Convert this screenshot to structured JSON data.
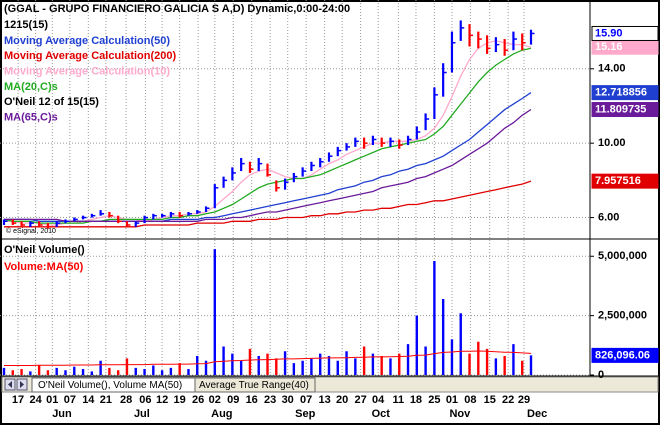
{
  "chart_data": [
    {
      "type": "ohlc",
      "title": "(GGAL - GRUPO FINANCIERO GALICIA S A,D) Dynamic,0:00-24:00",
      "subtitle": "1215(15)",
      "copyright": "© eSignal, 2010",
      "xlim": [
        0,
        60
      ],
      "xticks": [
        {
          "value": 1.6,
          "label": "17"
        },
        {
          "value": 3.6,
          "label": "24"
        },
        {
          "value": 5.5,
          "label": "01"
        },
        {
          "value": 7.5,
          "label": "07"
        },
        {
          "value": 9.6,
          "label": "14"
        },
        {
          "value": 11.6,
          "label": "21"
        },
        {
          "value": 13.9,
          "label": "28"
        },
        {
          "value": 16.1,
          "label": "06"
        },
        {
          "value": 18.0,
          "label": "12"
        },
        {
          "value": 20.0,
          "label": "19"
        },
        {
          "value": 22.1,
          "label": "26"
        },
        {
          "value": 24.0,
          "label": "02"
        },
        {
          "value": 26.1,
          "label": "09"
        },
        {
          "value": 28.2,
          "label": "16"
        },
        {
          "value": 30.3,
          "label": "23"
        },
        {
          "value": 32.3,
          "label": "30"
        },
        {
          "value": 34.4,
          "label": "07"
        },
        {
          "value": 36.5,
          "label": "13"
        },
        {
          "value": 38.5,
          "label": "20"
        },
        {
          "value": 40.6,
          "label": "27"
        },
        {
          "value": 42.6,
          "label": "04"
        },
        {
          "value": 44.9,
          "label": "11"
        },
        {
          "value": 46.9,
          "label": "18"
        },
        {
          "value": 49.0,
          "label": "25"
        },
        {
          "value": 51.0,
          "label": "01"
        },
        {
          "value": 53.1,
          "label": "08"
        },
        {
          "value": 55.3,
          "label": "15"
        },
        {
          "value": 57.4,
          "label": "22"
        },
        {
          "value": 59.2,
          "label": "29"
        }
      ],
      "month_ticks": [
        {
          "value": 6.6,
          "label": "Jun"
        },
        {
          "value": 15.7,
          "label": "Jul"
        },
        {
          "value": 24.8,
          "label": "Aug"
        },
        {
          "value": 34.3,
          "label": "Sep"
        },
        {
          "value": 42.9,
          "label": "Oct"
        },
        {
          "value": 51.9,
          "label": "Nov"
        },
        {
          "value": 60.7,
          "label": "Dec"
        }
      ],
      "ylim": [
        4.9,
        17.7
      ],
      "yticks": [
        {
          "value": 6,
          "label": "6.00"
        },
        {
          "value": 10,
          "label": "10.00"
        },
        {
          "value": 14,
          "label": "14.00"
        }
      ],
      "grid": true,
      "up_color": "#0000ff",
      "down_color": "#ff0000",
      "high": [
        5.9,
        5.9,
        5.8,
        5.8,
        5.8,
        5.7,
        5.8,
        5.9,
        6.0,
        6.1,
        6.2,
        6.4,
        6.3,
        6.1,
        5.8,
        5.8,
        6.1,
        6.2,
        6.2,
        6.3,
        6.3,
        6.3,
        6.4,
        6.6,
        7.8,
        8.2,
        8.7,
        9.2,
        9.0,
        9.2,
        8.9,
        8.0,
        8.1,
        8.4,
        8.7,
        9.0,
        9.2,
        9.5,
        9.8,
        10.0,
        10.3,
        10.3,
        10.4,
        10.3,
        10.3,
        10.2,
        10.4,
        10.9,
        11.6,
        13.0,
        14.3,
        16.0,
        16.6,
        16.4,
        16.0,
        15.8,
        15.7,
        15.6,
        16.0,
        15.9,
        16.1
      ],
      "low": [
        5.6,
        5.6,
        5.5,
        5.5,
        5.5,
        5.4,
        5.5,
        5.7,
        5.8,
        5.9,
        6.0,
        6.1,
        6.0,
        5.7,
        5.5,
        5.5,
        5.7,
        5.9,
        6.0,
        6.0,
        6.0,
        6.1,
        6.2,
        6.3,
        6.5,
        7.6,
        8.0,
        8.5,
        8.4,
        8.5,
        8.2,
        7.4,
        7.5,
        7.9,
        8.2,
        8.5,
        8.7,
        9.0,
        9.3,
        9.6,
        9.8,
        9.7,
        9.9,
        9.8,
        9.8,
        9.7,
        9.9,
        10.2,
        10.7,
        11.3,
        12.5,
        13.8,
        15.5,
        15.2,
        15.1,
        14.8,
        14.9,
        14.7,
        15.0,
        15.0,
        15.3
      ],
      "close": [
        5.8,
        5.7,
        5.6,
        5.7,
        5.6,
        5.5,
        5.7,
        5.8,
        5.9,
        6.0,
        6.1,
        6.2,
        6.1,
        5.8,
        5.6,
        5.7,
        6.0,
        6.1,
        6.1,
        6.2,
        6.1,
        6.2,
        6.3,
        6.5,
        7.6,
        8.0,
        8.4,
        8.9,
        8.6,
        8.9,
        8.3,
        7.6,
        7.9,
        8.2,
        8.5,
        8.8,
        9.0,
        9.3,
        9.6,
        9.8,
        10.1,
        10.0,
        10.2,
        10.0,
        10.1,
        9.9,
        10.2,
        10.6,
        11.3,
        12.6,
        13.8,
        15.4,
        16.2,
        15.8,
        15.6,
        15.1,
        15.3,
        15.0,
        15.6,
        15.4,
        15.9
      ],
      "close_label": "15.90",
      "legend_extra": "O'Neil 12 of 15(15)",
      "overlays": [
        {
          "name": "Moving Average Calculation(50)",
          "color": "#1f3fd0",
          "last_label": "12.718856",
          "values": [
            5.9,
            5.9,
            5.9,
            5.9,
            5.8,
            5.8,
            5.8,
            5.8,
            5.8,
            5.8,
            5.8,
            5.8,
            5.8,
            5.8,
            5.8,
            5.8,
            5.8,
            5.8,
            5.8,
            5.9,
            5.9,
            5.9,
            5.9,
            6.0,
            6.0,
            6.1,
            6.2,
            6.3,
            6.4,
            6.5,
            6.6,
            6.7,
            6.8,
            6.9,
            7.0,
            7.1,
            7.2,
            7.3,
            7.5,
            7.6,
            7.7,
            7.9,
            8.0,
            8.2,
            8.3,
            8.5,
            8.6,
            8.8,
            8.9,
            9.1,
            9.3,
            9.6,
            9.9,
            10.2,
            10.6,
            11.0,
            11.4,
            11.8,
            12.1,
            12.4,
            12.718856
          ]
        },
        {
          "name": "Moving Average Calculation(200)",
          "color": "#e00000",
          "last_label": "7.957516",
          "values": [
            5.5,
            5.5,
            5.5,
            5.5,
            5.5,
            5.5,
            5.5,
            5.5,
            5.5,
            5.5,
            5.5,
            5.5,
            5.5,
            5.5,
            5.5,
            5.5,
            5.6,
            5.6,
            5.6,
            5.6,
            5.6,
            5.6,
            5.7,
            5.7,
            5.7,
            5.7,
            5.8,
            5.8,
            5.8,
            5.9,
            5.9,
            5.9,
            6.0,
            6.0,
            6.0,
            6.1,
            6.1,
            6.2,
            6.2,
            6.3,
            6.3,
            6.4,
            6.4,
            6.5,
            6.5,
            6.6,
            6.7,
            6.7,
            6.8,
            6.9,
            6.9,
            7.0,
            7.1,
            7.2,
            7.3,
            7.4,
            7.5,
            7.6,
            7.7,
            7.8,
            7.957516
          ]
        },
        {
          "name": "Moving Average Calculation(10)",
          "color": "#ffaacc",
          "last_label": "15.16",
          "values": [
            5.8,
            5.8,
            5.7,
            5.7,
            5.7,
            5.6,
            5.6,
            5.7,
            5.7,
            5.8,
            5.9,
            6.0,
            6.1,
            6.0,
            5.9,
            5.9,
            5.8,
            5.9,
            6.0,
            6.1,
            6.1,
            6.2,
            6.2,
            6.3,
            6.6,
            7.0,
            7.4,
            7.9,
            8.3,
            8.5,
            8.6,
            8.4,
            8.2,
            8.1,
            8.1,
            8.3,
            8.6,
            8.9,
            9.1,
            9.4,
            9.6,
            9.8,
            10.0,
            10.0,
            10.1,
            10.1,
            10.1,
            10.2,
            10.4,
            10.8,
            11.5,
            12.5,
            13.6,
            14.5,
            15.1,
            15.4,
            15.5,
            15.4,
            15.3,
            15.3,
            15.16
          ]
        },
        {
          "name": "MA(20,C)s",
          "color": "#22aa22",
          "values": [
            5.9,
            5.8,
            5.8,
            5.8,
            5.7,
            5.7,
            5.7,
            5.7,
            5.7,
            5.7,
            5.8,
            5.8,
            5.9,
            5.9,
            5.9,
            5.9,
            5.9,
            5.9,
            5.9,
            6.0,
            6.0,
            6.1,
            6.1,
            6.2,
            6.3,
            6.5,
            6.7,
            7.0,
            7.3,
            7.6,
            7.8,
            7.9,
            8.0,
            8.1,
            8.1,
            8.2,
            8.3,
            8.5,
            8.7,
            8.9,
            9.1,
            9.3,
            9.5,
            9.7,
            9.8,
            9.9,
            10.0,
            10.1,
            10.2,
            10.5,
            10.9,
            11.5,
            12.1,
            12.7,
            13.3,
            13.8,
            14.2,
            14.5,
            14.8,
            15.0,
            15.1
          ]
        },
        {
          "name": "MA(65,C)s",
          "color": "#6a1b9a",
          "last_label": "11.809735",
          "values": [
            5.9,
            5.9,
            5.9,
            5.9,
            5.9,
            5.9,
            5.9,
            5.8,
            5.8,
            5.8,
            5.8,
            5.8,
            5.8,
            5.8,
            5.8,
            5.8,
            5.8,
            5.8,
            5.8,
            5.8,
            5.8,
            5.8,
            5.8,
            5.9,
            5.9,
            5.9,
            6.0,
            6.0,
            6.1,
            6.2,
            6.3,
            6.3,
            6.4,
            6.5,
            6.6,
            6.7,
            6.8,
            6.9,
            7.0,
            7.1,
            7.2,
            7.3,
            7.4,
            7.6,
            7.7,
            7.8,
            7.9,
            8.1,
            8.2,
            8.4,
            8.6,
            8.8,
            9.1,
            9.4,
            9.7,
            10.0,
            10.4,
            10.8,
            11.1,
            11.5,
            11.809735
          ]
        }
      ]
    },
    {
      "type": "volume",
      "title": "O'Neil Volume()",
      "ylim": [
        0,
        5600000
      ],
      "yticks": [
        0,
        {
          "value": 2500000,
          "label": "2,500,000"
        },
        {
          "value": 5000000,
          "label": "5,000,000"
        }
      ],
      "grid": true,
      "values": [
        300000,
        200000,
        250000,
        150000,
        400000,
        200000,
        300000,
        200000,
        350000,
        250000,
        150000,
        600000,
        300000,
        200000,
        700000,
        300000,
        250000,
        400000,
        200000,
        300000,
        500000,
        250000,
        800000,
        600000,
        5300000,
        1200000,
        900000,
        600000,
        1100000,
        800000,
        900000,
        700000,
        1000000,
        500000,
        600000,
        700000,
        900000,
        800000,
        600000,
        1000000,
        700000,
        1200000,
        900000,
        800000,
        700000,
        900000,
        1300000,
        2500000,
        1200000,
        4800000,
        3200000,
        1500000,
        2600000,
        900000,
        1400000,
        1100000,
        700000,
        800000,
        1300000,
        600000,
        826096.06
      ],
      "last_label": "826,096.06",
      "series": [
        {
          "name": "Volume:MA(50)",
          "color": "#ff0000",
          "values": [
            400000,
            400000,
            400000,
            400000,
            410000,
            410000,
            410000,
            410000,
            420000,
            420000,
            420000,
            430000,
            430000,
            430000,
            440000,
            440000,
            440000,
            450000,
            450000,
            450000,
            460000,
            460000,
            470000,
            480000,
            560000,
            580000,
            600000,
            610000,
            630000,
            640000,
            650000,
            660000,
            680000,
            680000,
            690000,
            700000,
            710000,
            720000,
            720000,
            730000,
            740000,
            750000,
            760000,
            760000,
            770000,
            780000,
            790000,
            830000,
            840000,
            900000,
            950000,
            970000,
            1000000,
            1000000,
            1010000,
            1000000,
            980000,
            960000,
            950000,
            930000,
            910000
          ]
        }
      ]
    }
  ],
  "tabs": [
    "O'Neil Volume(), Volume MA(50)",
    "Average True Range(40)"
  ]
}
